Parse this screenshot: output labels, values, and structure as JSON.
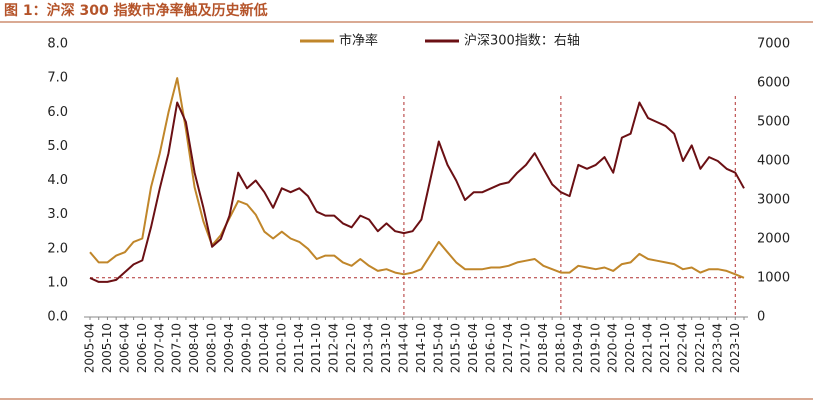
{
  "chart_data": {
    "type": "line",
    "title": "图 1：沪深 300 指数市净率触及历史新低",
    "categories": [
      "2005-04",
      null,
      "2005-10",
      null,
      "2006-04",
      null,
      "2006-10",
      null,
      "2007-04",
      null,
      "2007-10",
      null,
      "2008-04",
      null,
      "2008-10",
      null,
      "2009-04",
      null,
      "2009-10",
      null,
      "2010-04",
      null,
      "2010-10",
      null,
      "2011-04",
      null,
      "2011-10",
      null,
      "2012-04",
      null,
      "2012-10",
      null,
      "2013-04",
      null,
      "2013-10",
      null,
      "2014-04",
      null,
      "2014-10",
      null,
      "2015-04",
      null,
      "2015-10",
      null,
      "2016-04",
      null,
      "2016-10",
      null,
      "2017-04",
      null,
      "2017-10",
      null,
      "2018-04",
      null,
      "2018-10",
      null,
      "2019-04",
      null,
      "2019-10",
      null,
      "2020-04",
      null,
      "2020-10",
      null,
      "2021-04",
      null,
      "2021-10",
      null,
      "2022-04",
      null,
      "2022-10",
      null,
      "2023-04",
      null,
      "2023-10",
      null
    ],
    "series": [
      {
        "name": "市净率",
        "color": "#c0862a",
        "axis": "y",
        "values": [
          1.9,
          1.6,
          1.6,
          1.8,
          1.9,
          2.2,
          2.3,
          3.8,
          4.8,
          6.0,
          7.0,
          5.5,
          3.8,
          2.8,
          2.1,
          2.4,
          2.9,
          3.4,
          3.3,
          3.0,
          2.5,
          2.3,
          2.5,
          2.3,
          2.2,
          2.0,
          1.7,
          1.8,
          1.8,
          1.6,
          1.5,
          1.7,
          1.5,
          1.35,
          1.4,
          1.3,
          1.25,
          1.3,
          1.4,
          1.8,
          2.2,
          1.9,
          1.6,
          1.4,
          1.4,
          1.4,
          1.45,
          1.45,
          1.5,
          1.6,
          1.65,
          1.7,
          1.5,
          1.4,
          1.3,
          1.3,
          1.5,
          1.45,
          1.4,
          1.45,
          1.35,
          1.55,
          1.6,
          1.85,
          1.7,
          1.65,
          1.6,
          1.55,
          1.4,
          1.45,
          1.3,
          1.4,
          1.4,
          1.35,
          1.25,
          1.15
        ]
      },
      {
        "name": "沪深300指数：右轴",
        "color": "#6b1014",
        "axis": "y2",
        "values": [
          1000,
          900,
          900,
          950,
          1150,
          1350,
          1450,
          2300,
          3300,
          4200,
          5500,
          5000,
          3700,
          2800,
          1800,
          2000,
          2600,
          3700,
          3300,
          3500,
          3200,
          2800,
          3300,
          3200,
          3300,
          3100,
          2700,
          2600,
          2600,
          2400,
          2300,
          2600,
          2500,
          2200,
          2400,
          2200,
          2150,
          2200,
          2500,
          3500,
          4500,
          3900,
          3500,
          3000,
          3200,
          3200,
          3300,
          3400,
          3450,
          3700,
          3900,
          4200,
          3800,
          3400,
          3200,
          3100,
          3900,
          3800,
          3900,
          4100,
          3700,
          4600,
          4700,
          5500,
          5100,
          5000,
          4900,
          4700,
          4000,
          4400,
          3800,
          4100,
          4000,
          3800,
          3700,
          3300
        ]
      }
    ],
    "ylim": [
      0,
      8
    ],
    "yticks": [
      {
        "value": 0,
        "label": "0.0"
      },
      {
        "value": 1,
        "label": "1.0"
      },
      {
        "value": 2,
        "label": "2.0"
      },
      {
        "value": 3,
        "label": "3.0"
      },
      {
        "value": 4,
        "label": "4.0"
      },
      {
        "value": 5,
        "label": "5.0"
      },
      {
        "value": 6,
        "label": "6.0"
      },
      {
        "value": 7,
        "label": "7.0"
      },
      {
        "value": 8,
        "label": "8.0"
      }
    ],
    "y2lim": [
      0,
      7000
    ],
    "y2ticks": [
      0,
      1000,
      2000,
      3000,
      4000,
      5000,
      6000,
      7000
    ],
    "reference_x": [
      "2014-04",
      "2018-10",
      "2023-10"
    ],
    "reference_y": 1.15,
    "legend": "top"
  }
}
